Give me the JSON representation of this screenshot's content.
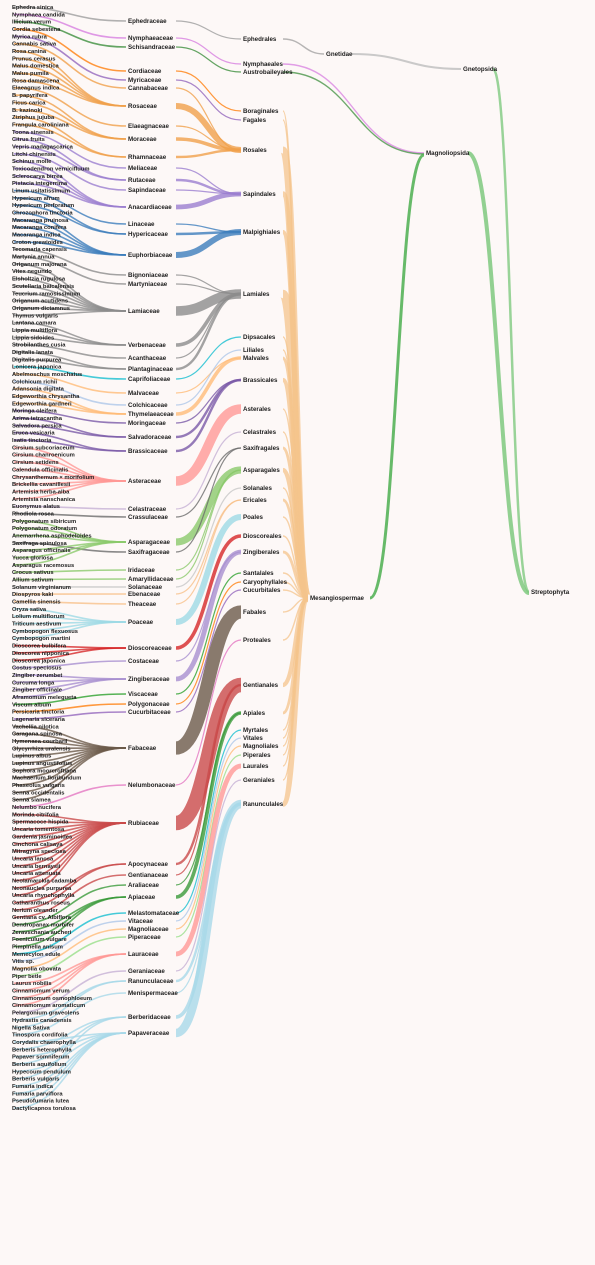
{
  "tree": {
    "species": [
      "Ephedra sinica",
      "Nymphaea candida",
      "Illicium verum",
      "Cordia sebestena",
      "Myrica rubra",
      "Cannabis sativa",
      "Rosa canina",
      "Prunus cerasus",
      "Malus domestica",
      "Malus pumila",
      "Rosa damascena",
      "Elaeagnus indica",
      "B. papyrifera",
      "Ficus carica",
      "B. kazinoki",
      "Ziziphus jujuba",
      "Frangula caroliniana",
      "Toona sinensis",
      "Citrus fruits",
      "Vepris madagascarica",
      "Litchi chinensis",
      "Schinus molle",
      "Toxicodendron vernicifluum",
      "Sclerocarya birrea",
      "Pistacia integerrima",
      "Linum usitatissimum",
      "Hypericum afrum",
      "Hypericum perforatum",
      "Chrozophora tinctoria",
      "Macaranga pruinosa",
      "Macaranga conifera",
      "Macaranga indica",
      "Croton grewioides",
      "Tecomaria capensis",
      "Martynia annua",
      "Origanum majorana",
      "Vitex negundo",
      "Elsholtzia rugulosa",
      "Scutellaria baicalensis",
      "Teucrium ramosissimum",
      "Origanum acutidens",
      "Origanum dictamnus",
      "Thymus vulgaris",
      "Lantana camara",
      "Lippia multiflora",
      "Lippia sidoides",
      "Strobilanthes cusia",
      "Digitalis lanata",
      "Digitalis purpurea",
      "Lonicera japonica",
      "Abelmoschus moschatus",
      "Colchicum richii",
      "Adansonia digitata",
      "Edgeworthia chrysantha",
      "Edgeworthia gardneri",
      "Moringa oleifera",
      "Azima tetracantha",
      "Salvadora persica",
      "Eruca vesicaria",
      "Isatis tinctoria",
      "Cirsium subcoriaceum",
      "Cirsium chanroenicum",
      "Cirsium setidens",
      "Calendula officinalis",
      "Chrysanthemum × morifolium",
      "Brickellia cavanillesii",
      "Artemisia herba-alba",
      "Artemisia nanschanica",
      "Euonymus alatus",
      "Rhodiola rosea",
      "Polygonatum sibiricum",
      "Polygonatum odoratum",
      "Anemarrhena asphodeloides",
      "Saxifraga spinulosa",
      "Asparagus officinalis",
      "Yucca gloriosa",
      "Asparagus racemosus",
      "Crocus sativus",
      "Allium sativum",
      "Solanum virginianum",
      "Diospyros kaki",
      "Camellia sinensis",
      "Oryza sativa",
      "Lolium multiflorum",
      "Triticum aestivum",
      "Cymbopogon flexuosus",
      "Cymbopogon martini",
      "Dioscorea bulbifera",
      "Dioscorea nipponica",
      "Dioscorea japonica",
      "Costus speciosus",
      "Zingiber zerumbet",
      "Curcuma longa",
      "Zingiber officinale",
      "Aframomum melegueta",
      "Viscum album",
      "Persicaria tinctoria",
      "Lagenaria siceraria",
      "Vachellia nilotica",
      "Caragana spinosa",
      "Hymenaea courbaril",
      "Glycyrrhiza uralensis",
      "Lupinus albus",
      "Lupinus angustifolius",
      "Sophora moorcroftiana",
      "Machaerium floribundum",
      "Phaseolus vulgaris",
      "Senna occidentalis",
      "Senna siamea",
      "Nelumbo nucifera",
      "Morinda citrifolia",
      "Spermacoce hispida",
      "Uncaria tomentosa",
      "Gardenia jasminoides",
      "Cinchona calisaya",
      "Mitragyna speciosa",
      "Uncaria lanosa",
      "Uncaria bernaysii",
      "Uncaria attenuata",
      "Neolamarckia cadamba",
      "Neonauclea purpurea",
      "Uncaria rhynchophylla",
      "Catharanthus roseus",
      "Nerium oleander",
      "Gentiana cv. Albiflora",
      "Dendropanax morbifer",
      "Zeravschania aucheri",
      "Foeniculum vulgare",
      "Pimpinella anisum",
      "Memecylon edule",
      "Vitis sp.",
      "Magnolia obovata",
      "Piper betle",
      "Laurus nobilis",
      "Cinnamomum verum",
      "Cinnamomum osmophloeum",
      "Cinnamomum aromaticum",
      "Pelargonium graveolens",
      "Hydrastis canadensis",
      "Nigella Sativa",
      "Tinospora cordifolia",
      "Corydalis chaerophylla",
      "Berberis heterophylla",
      "Papaver somniferum",
      "Berberis aquifolium",
      "Hypecoum pendulum",
      "Berberis vulgaris",
      "Fumaria indica",
      "Fumaria parviflora",
      "Pseudofumaria lutea",
      "Dactylicapnos torulosa"
    ],
    "families": [
      "Ephedraceae",
      "Nymphaeaceae",
      "Schisandraceae",
      "Cordiaceae",
      "Myricaceae",
      "Cannabaceae",
      "Rosaceae",
      "Elaeagnaceae",
      "Moraceae",
      "Rhamnaceae",
      "Meliaceae",
      "Rutaceae",
      "Sapindaceae",
      "Anacardiaceae",
      "Linaceae",
      "Hypericaceae",
      "Euphorbiaceae",
      "Bignoniaceae",
      "Martyniaceae",
      "Lamiaceae",
      "Verbenaceae",
      "Acanthaceae",
      "Plantaginaceae",
      "Caprifoliaceae",
      "Malvaceae",
      "Colchicaceae",
      "Thymelaeaceae",
      "Moringaceae",
      "Salvadoraceae",
      "Brassicaceae",
      "Asteraceae",
      "Celastraceae",
      "Crassulaceae",
      "Asparagaceae",
      "Saxifragaceae",
      "Iridaceae",
      "Amaryllidaceae",
      "Solanaceae",
      "Ebenaceae",
      "Theaceae",
      "Poaceae",
      "Dioscoreaceae",
      "Costaceae",
      "Zingiberaceae",
      "Viscaceae",
      "Polygonaceae",
      "Cucurbitaceae",
      "Fabaceae",
      "Nelumbonaceae",
      "Rubiaceae",
      "Apocynaceae",
      "Gentianaceae",
      "Araliaceae",
      "Apiaceae",
      "Melastomataceae",
      "Vitaceae",
      "Magnoliaceae",
      "Piperaceae",
      "Lauraceae",
      "Geraniaceae",
      "Ranunculaceae",
      "Menispermaceae",
      "Berberidaceae",
      "Papaveraceae"
    ],
    "orders": [
      "Ephedrales",
      "Nymphaeales",
      "Austrobaileyales",
      "Boraginales",
      "Fagales",
      "Rosales",
      "Sapindales",
      "Malpighiales",
      "Lamiales",
      "Dipsacales",
      "Liliales",
      "Malvales",
      "Brassicales",
      "Asterales",
      "Celastrales",
      "Saxifragales",
      "Asparagales",
      "Solanales",
      "Ericales",
      "Poales",
      "Dioscoreales",
      "Zingiberales",
      "Santalales",
      "Caryophyllales",
      "Cucurbitales",
      "Fabales",
      "Proteales",
      "Gentianales",
      "Apiales",
      "Myrtales",
      "Vitales",
      "Magnoliales",
      "Piperales",
      "Laurales",
      "Geraniales",
      "Ranunculales"
    ],
    "higher": {
      "gnetidae": "Gnetidae",
      "gnetopsida": "Gnetopsida",
      "magnoliopsida": "Magnoliopsida",
      "mesangiospermae": "Mesangiospermae",
      "streptophyta": "Streptophyta"
    },
    "species_family": [
      0,
      1,
      2,
      3,
      4,
      5,
      6,
      6,
      6,
      6,
      6,
      7,
      8,
      8,
      8,
      9,
      9,
      10,
      11,
      11,
      12,
      13,
      13,
      13,
      13,
      14,
      15,
      15,
      16,
      16,
      16,
      16,
      16,
      17,
      18,
      19,
      19,
      19,
      19,
      19,
      19,
      19,
      19,
      20,
      20,
      20,
      21,
      22,
      22,
      23,
      24,
      25,
      26,
      26,
      26,
      27,
      28,
      28,
      29,
      29,
      30,
      30,
      30,
      30,
      30,
      30,
      30,
      30,
      31,
      32,
      33,
      33,
      33,
      34,
      33,
      33,
      33,
      35,
      36,
      37,
      38,
      39,
      40,
      40,
      40,
      40,
      40,
      41,
      41,
      41,
      42,
      43,
      43,
      43,
      43,
      44,
      45,
      46,
      47,
      47,
      47,
      47,
      47,
      47,
      47,
      47,
      47,
      47,
      47,
      48,
      49,
      49,
      49,
      49,
      49,
      49,
      49,
      49,
      49,
      49,
      49,
      49,
      50,
      50,
      51,
      52,
      53,
      53,
      53,
      54,
      55,
      56,
      57,
      58,
      58,
      58,
      58,
      59,
      60,
      60,
      61,
      63,
      62,
      63,
      62,
      63,
      62,
      63,
      63,
      63,
      63
    ],
    "family_order": [
      0,
      1,
      2,
      3,
      4,
      5,
      5,
      5,
      5,
      5,
      6,
      6,
      6,
      6,
      7,
      7,
      7,
      8,
      8,
      8,
      8,
      8,
      8,
      9,
      11,
      10,
      11,
      12,
      12,
      12,
      13,
      14,
      15,
      16,
      15,
      16,
      16,
      17,
      18,
      18,
      19,
      20,
      21,
      21,
      22,
      23,
      24,
      25,
      26,
      27,
      27,
      27,
      28,
      28,
      29,
      30,
      31,
      32,
      33,
      34,
      35,
      35,
      35,
      35
    ],
    "order_parent": [
      "ephedrales",
      "nymphaeales",
      "austrobaileyales",
      "mes",
      "mes",
      "mes",
      "mes",
      "mes",
      "mes",
      "mes",
      "mes",
      "mes",
      "mes",
      "mes",
      "mes",
      "mes",
      "mes",
      "mes",
      "mes",
      "mes",
      "mes",
      "mes",
      "mes",
      "mes",
      "mes",
      "mes",
      "mes",
      "mes",
      "mes",
      "mes",
      "mes",
      "mes",
      "mes",
      "mes",
      "mes",
      "mes"
    ],
    "colors": {
      "ephedra": "#9e9e9e",
      "gymnosperm_link": "#bdbdbd",
      "nymph": "#d77fe0",
      "austro": "#3d8f3d",
      "rosales": "#f0a04b",
      "sapindales": "#9b7ed0",
      "malpighiales": "#3c7dbb",
      "lamiales": "#8c8c8c",
      "brassicales": "#7b5aa8",
      "saxifragales": "#6b6b6b",
      "asparagales": "#8bc96b",
      "ericales": "#f7c08a",
      "zingiberales": "#a88fd0",
      "fabales": "#6b5a4a",
      "gentianales": "#c94a4a",
      "apiales": "#3a9a3a",
      "ranunculales": "#a8d8e8",
      "mesangiospermae": "#f4c48c",
      "magnoliopsida": "#4caf50",
      "streptophyta": "#7fc97f",
      "misc": [
        "#d62728",
        "#1f77b4",
        "#2ca02c",
        "#ff7f0e",
        "#9467bd",
        "#8c564b",
        "#e377c2",
        "#7f7f7f",
        "#bcbd22",
        "#17becf",
        "#aec7e8",
        "#ffbb78",
        "#98df8a",
        "#ff9896",
        "#c5b0d5",
        "#c49c94",
        "#f7b6d2",
        "#c7c7c7",
        "#dbdb8d",
        "#9edae5"
      ]
    }
  }
}
